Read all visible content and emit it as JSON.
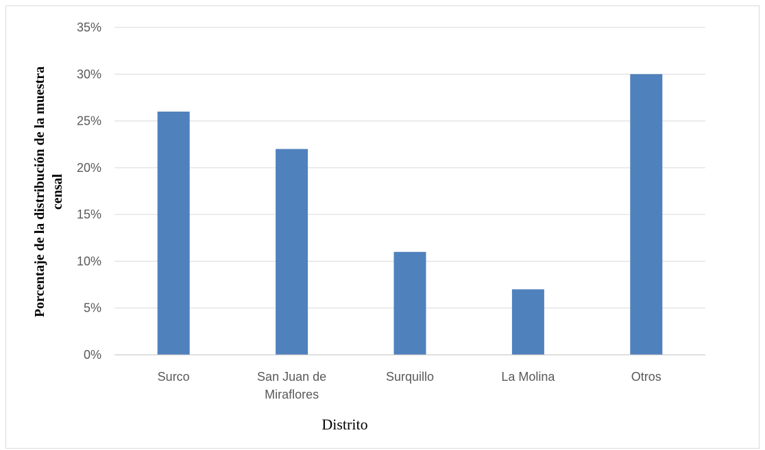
{
  "chart_data": {
    "type": "bar",
    "categories": [
      "Surco",
      "San Juan de Miraflores",
      "Surquillo",
      "La Molina",
      "Otros"
    ],
    "category_lines": [
      [
        "Surco"
      ],
      [
        "San Juan de",
        "Miraflores"
      ],
      [
        "Surquillo"
      ],
      [
        "La Molina"
      ],
      [
        "Otros"
      ]
    ],
    "values": [
      0.26,
      0.22,
      0.11,
      0.07,
      0.3
    ],
    "xlabel": "Distrito",
    "ylabel_lines": [
      "Porcentaje de la distribución de la muestra",
      "censal"
    ],
    "ylim": [
      0,
      0.35
    ],
    "ytick_values": [
      0,
      0.05,
      0.1,
      0.15,
      0.2,
      0.25,
      0.3,
      0.35
    ],
    "ytick_labels": [
      "0%",
      "5%",
      "10%",
      "15%",
      "20%",
      "25%",
      "30%",
      "35%"
    ],
    "grid": true,
    "bar_color": "#4f81bd",
    "grid_color": "#d9d9d9",
    "legend": "none"
  }
}
